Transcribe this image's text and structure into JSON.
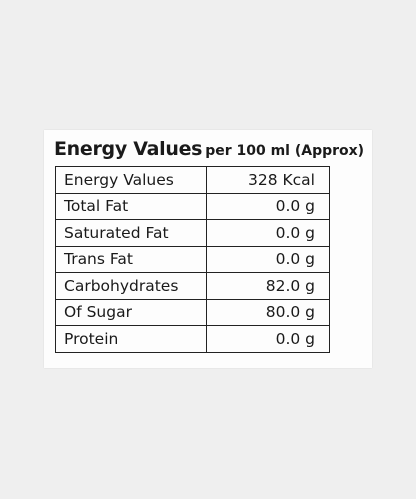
{
  "label": {
    "title": "Energy Values",
    "subtitle": "per 100 ml (Approx)",
    "table": {
      "rows": [
        [
          "Energy Values",
          "328 Kcal"
        ],
        [
          "Total Fat",
          "0.0 g"
        ],
        [
          "Saturated Fat",
          "0.0 g"
        ],
        [
          "Trans Fat",
          "0.0 g"
        ],
        [
          "Carbohydrates",
          "82.0 g"
        ],
        [
          "Of Sugar",
          "80.0 g"
        ],
        [
          "Protein",
          "0.0 g"
        ]
      ]
    }
  }
}
